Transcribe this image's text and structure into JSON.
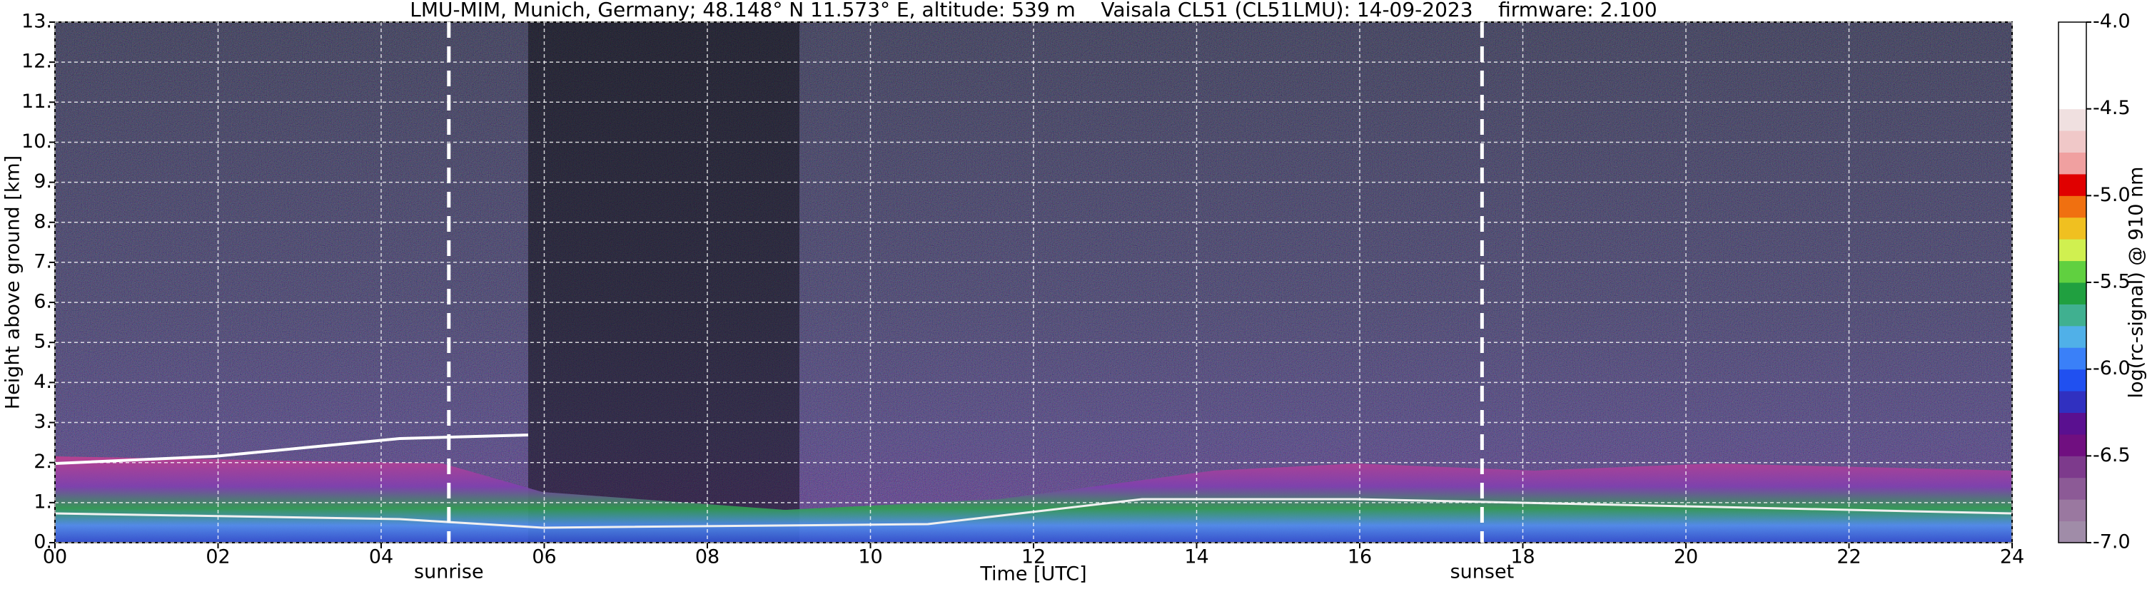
{
  "chart_data": {
    "type": "heatmap",
    "title": "LMU-MIM, Munich, Germany; 48.148° N 11.573° E, altitude: 539 m    Vaisala CL51 (CL51LMU): 14-09-2023    firmware: 2.100",
    "x_label": "Time [UTC]",
    "y_label": "Height above ground [km]",
    "xlim": [
      0,
      24
    ],
    "xticks": [
      {
        "value": 0,
        "label": "00"
      },
      {
        "value": 2,
        "label": "02"
      },
      {
        "value": 4,
        "label": "04"
      },
      {
        "value": 6,
        "label": "06"
      },
      {
        "value": 8,
        "label": "08"
      },
      {
        "value": 10,
        "label": "10"
      },
      {
        "value": 12,
        "label": "12"
      },
      {
        "value": 14,
        "label": "14"
      },
      {
        "value": 16,
        "label": "16"
      },
      {
        "value": 18,
        "label": "18"
      },
      {
        "value": 20,
        "label": "20"
      },
      {
        "value": 22,
        "label": "22"
      },
      {
        "value": 24,
        "label": "24"
      }
    ],
    "ylim": [
      0,
      13
    ],
    "yticks": [
      {
        "value": 0,
        "label": "0."
      },
      {
        "value": 1,
        "label": "1."
      },
      {
        "value": 2,
        "label": "2."
      },
      {
        "value": 3,
        "label": "3."
      },
      {
        "value": 4,
        "label": "4."
      },
      {
        "value": 5,
        "label": "5."
      },
      {
        "value": 6,
        "label": "6."
      },
      {
        "value": 7,
        "label": "7."
      },
      {
        "value": 8,
        "label": "8."
      },
      {
        "value": 9,
        "label": "9."
      },
      {
        "value": 10,
        "label": "10."
      },
      {
        "value": 11,
        "label": "11."
      },
      {
        "value": 12,
        "label": "12."
      },
      {
        "value": 13,
        "label": "13."
      }
    ],
    "grid": true,
    "vlines": [
      {
        "x": 4.83,
        "label": "sunrise"
      },
      {
        "x": 17.5,
        "label": "sunset"
      }
    ],
    "colorbar": {
      "label": "log(rc-signal) @ 910 nm",
      "lim": [
        -7,
        -4
      ],
      "ticks": [
        {
          "value": -7,
          "label": "-7.0"
        },
        {
          "value": -6.5,
          "label": "-6.5"
        },
        {
          "value": -6,
          "label": "-6.0"
        },
        {
          "value": -5.5,
          "label": "-5.5"
        },
        {
          "value": -5,
          "label": "-5.0"
        },
        {
          "value": -4.5,
          "label": "-4.5"
        },
        {
          "value": -4,
          "label": "-4.0"
        }
      ],
      "colors": [
        "#a08ca8",
        "#9a78a0",
        "#8c5a96",
        "#7d3a8c",
        "#700f80",
        "#5a1090",
        "#3030c0",
        "#2050f0",
        "#3a80f8",
        "#50b0e8",
        "#40b090",
        "#20a040",
        "#60d040",
        "#d0f050",
        "#f0c020",
        "#f07010",
        "#e00000",
        "#f0a0a0",
        "#f0c8c8",
        "#f0e0e0",
        "#ffffff",
        "#ffffff",
        "#ffffff",
        "#ffffff"
      ]
    }
  }
}
